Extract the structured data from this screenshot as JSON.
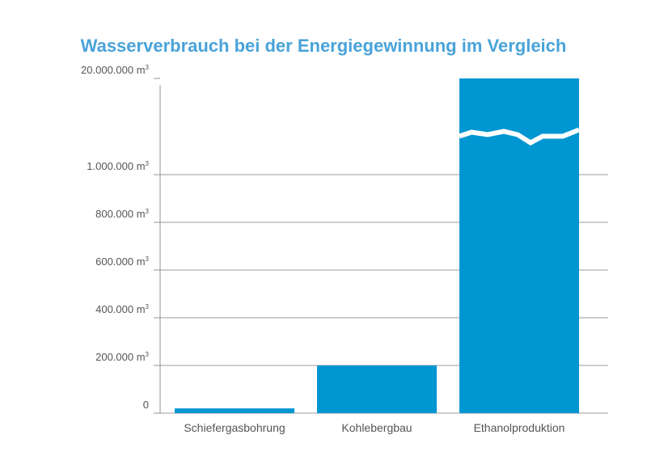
{
  "colors": {
    "bar": "#0096d2",
    "title": "#4aa3d9",
    "grid": "#7a7a7a"
  },
  "chart_data": {
    "type": "bar",
    "title": "Wasserverbrauch bei der Energiegewinnung im Vergleich",
    "xlabel": "",
    "ylabel": "",
    "unit": "m3",
    "axis_break": {
      "between": [
        1000000,
        20000000
      ]
    },
    "y_ticks": [
      {
        "value": 0,
        "label": "0",
        "unit": ""
      },
      {
        "value": 200000,
        "label": "200.000 m",
        "unit": "3"
      },
      {
        "value": 400000,
        "label": "400.000 m",
        "unit": "3"
      },
      {
        "value": 600000,
        "label": "600.000 m",
        "unit": "3"
      },
      {
        "value": 800000,
        "label": "800.000 m",
        "unit": "3"
      },
      {
        "value": 1000000,
        "label": "1.000.000 m",
        "unit": "3"
      },
      {
        "value": 20000000,
        "label": "20.000.000 m",
        "unit": "3"
      }
    ],
    "categories": [
      "Schiefergasbohrung",
      "Kohlebergbau",
      "Ethanolproduktion"
    ],
    "values": [
      20000,
      200000,
      20000000
    ],
    "grid": true,
    "legend": "none"
  }
}
